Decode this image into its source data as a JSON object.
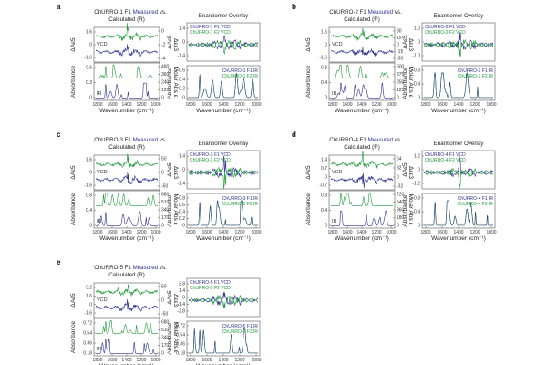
{
  "colors": {
    "measured": "#2e3192",
    "calculated": "#1f9a3a",
    "f1": "#2e3192",
    "f2": "#1f9a3a",
    "axis": "#555555"
  },
  "chart_data": [
    {
      "type": "line",
      "letter": "a",
      "left": {
        "title_prefix": "ChURRO-1 F1",
        "title_measured": "Measured",
        "title_suffix": "vs.",
        "title_calculated": "Calculated (R)",
        "vcd_label": "VCD",
        "ir_label": "IR",
        "ylabel_vcd_left": "ΔAε5",
        "ylabel_vcd_right": "Δεε3",
        "ylabel_ir_left": "Absorbance",
        "ylabel_ir_right": "Molar Abs ε",
        "vcd_left_ticks": [
          "1.6",
          "0",
          "-1.6"
        ],
        "vcd_right_ticks": [
          "0",
          "-2",
          "-4"
        ],
        "ir_left_ticks": [
          "0.6",
          "0.3",
          "0"
        ],
        "ir_right_ticks": [
          "480",
          "360",
          "240",
          "120",
          "0"
        ],
        "xlabel": "Wavenumber (cm⁻¹)",
        "xticks": [
          "1800",
          "1600",
          "1400",
          "1200",
          "1000"
        ],
        "xlim": [
          1850,
          950
        ]
      },
      "right": {
        "title": "Enantiomer Overlay",
        "ylabel_vcd": "ΔAε5",
        "ylabel_ir": "Absorbance",
        "vcd_ticks": [
          "1.4",
          "0",
          "-1.4"
        ],
        "ir_ticks": [
          "0.6",
          "0.4",
          "0.2",
          "0"
        ],
        "legend_vcd": [
          "ChURRO-1 F1 VCD",
          "ChURRO-1 F2 VCD"
        ],
        "legend_ir": [
          "ChURRO-1 F1 IR",
          "ChURRO-1 F2 IR"
        ],
        "xlabel": "Wavenumber (cm⁻¹)",
        "xticks": [
          "1800",
          "1600",
          "1400",
          "1200",
          "1000"
        ],
        "xlim": [
          1850,
          950
        ]
      }
    },
    {
      "type": "line",
      "letter": "b",
      "left": {
        "title_prefix": "ChURRO-2 F1",
        "title_measured": "Measured",
        "title_suffix": "vs.",
        "title_calculated": "Calculated (R)",
        "vcd_label": "VCD",
        "ir_label": "IR",
        "ylabel_vcd_left": "ΔAε5",
        "ylabel_vcd_right": "Δεε3",
        "ylabel_ir_left": "Absorbance",
        "ylabel_ir_right": "Molar Abs ε",
        "vcd_left_ticks": [
          "1.6",
          "0",
          "-1.6"
        ],
        "vcd_right_ticks": [
          "30",
          "15",
          "0",
          "-15",
          "-30"
        ],
        "ir_left_ticks": [
          "0.8",
          "0.4",
          "0"
        ],
        "ir_right_ticks": [
          "500",
          "375",
          "250",
          "125",
          "0"
        ],
        "xlabel": "Wavenumber (cm⁻¹)",
        "xticks": [
          "1800",
          "1600",
          "1400",
          "1200",
          "1000"
        ],
        "xlim": [
          1850,
          950
        ]
      },
      "right": {
        "title": "Enantiomer Overlay",
        "ylabel_vcd": "ΔAε5",
        "ylabel_ir": "Absorbance",
        "vcd_ticks": [
          "1.0",
          "0",
          "-1.0"
        ],
        "ir_ticks": [
          "0.8",
          "0.4",
          "0"
        ],
        "legend_vcd": [
          "ChURRO-2 F1 VCD",
          "ChURRO-2 F2 VCD"
        ],
        "legend_ir": [
          "ChURRO-2 F1 IR",
          "ChURRO-2 F2 IR"
        ],
        "xlabel": "Wavenumber (cm⁻¹)",
        "xticks": [
          "1800",
          "1600",
          "1400",
          "1200",
          "1000"
        ],
        "xlim": [
          1850,
          950
        ]
      }
    },
    {
      "type": "line",
      "letter": "c",
      "left": {
        "title_prefix": "ChURRO-3 F1",
        "title_measured": "Measured",
        "title_suffix": "vs.",
        "title_calculated": "Calculated (R)",
        "vcd_label": "VCD",
        "ir_label": "IR",
        "ylabel_vcd_left": "ΔAε5",
        "ylabel_vcd_right": "Δεε3",
        "ylabel_ir_left": "Absorbance",
        "ylabel_ir_right": "Molar Abs ε",
        "vcd_left_ticks": [
          "1.6",
          "0",
          "-1.6"
        ],
        "vcd_right_ticks": [
          "50",
          "0",
          "-50"
        ],
        "ir_left_ticks": [
          "0.8",
          "0.4",
          "0"
        ],
        "ir_right_ticks": [
          "680",
          "510",
          "340",
          "170",
          "0"
        ],
        "xlabel": "Wavenumber (cm⁻¹)",
        "xticks": [
          "1800",
          "1600",
          "1400",
          "1200",
          "1000"
        ],
        "xlim": [
          1850,
          950
        ]
      },
      "right": {
        "title": "Enantiomer Overlay",
        "ylabel_vcd": "ΔAε5",
        "ylabel_ir": "Absorbance",
        "vcd_ticks": [
          "1.4",
          "0",
          "-1.4"
        ],
        "ir_ticks": [
          "0.8",
          "0.6",
          "0.4",
          "0.2",
          "0"
        ],
        "legend_vcd": [
          "ChURRO-3 F1 VCD",
          "ChURRO-3 F2 VCD"
        ],
        "legend_ir": [
          "ChURRO-3 F1 IR",
          "ChURRO-3 F2 IR"
        ],
        "xlabel": "Wavenumber (cm⁻¹)",
        "xticks": [
          "1800",
          "1600",
          "1400",
          "1200",
          "1000"
        ],
        "xlim": [
          1850,
          950
        ]
      }
    },
    {
      "type": "line",
      "letter": "d",
      "left": {
        "title_prefix": "ChURRO-4 F1",
        "title_measured": "Measured",
        "title_suffix": "vs.",
        "title_calculated": "Calculated (R)",
        "vcd_label": "VCD",
        "ir_label": "IR",
        "ylabel_vcd_left": "ΔAε5",
        "ylabel_vcd_right": "Δεε3",
        "ylabel_ir_left": "Absorbance",
        "ylabel_ir_right": "Molar Abs ε",
        "vcd_left_ticks": [
          "1.4",
          "0.7",
          "0",
          "-0.7"
        ],
        "vcd_right_ticks": [
          "64",
          "32",
          "0",
          "-32"
        ],
        "ir_left_ticks": [
          "0.8",
          "0.4",
          "0"
        ],
        "ir_right_ticks": [
          "720",
          "540",
          "360",
          "180",
          "0"
        ],
        "xlabel": "Wavenumber (cm⁻¹)",
        "xticks": [
          "1800",
          "1600",
          "1400",
          "1200",
          "1000"
        ],
        "xlim": [
          1850,
          950
        ]
      },
      "right": {
        "title": "Enantiomer Overlay",
        "ylabel_vcd": "ΔAε5",
        "ylabel_ir": "Absorbance",
        "vcd_ticks": [
          "1.2",
          "0",
          "-1.2"
        ],
        "ir_ticks": [
          "0.8",
          "0.4",
          "0"
        ],
        "legend_vcd": [
          "ChURRO-4 F1 VCD",
          "ChURRO-4 F2 VCD"
        ],
        "legend_ir": [
          "ChURRO-4 F1 IR",
          "ChURRO-4 F2 IR"
        ],
        "xlabel": "Wavenumber (cm⁻¹)",
        "xticks": [
          "1800",
          "1600",
          "1400",
          "1200",
          "1000"
        ],
        "xlim": [
          1850,
          950
        ]
      }
    },
    {
      "type": "line",
      "letter": "e",
      "left": {
        "title_prefix": "ChURRO-5 F1",
        "title_measured": "Measured",
        "title_suffix": "vs.",
        "title_calculated": "Calculated (R)",
        "vcd_label": "VCD",
        "ir_label": "IR",
        "ylabel_vcd_left": "ΔAε5",
        "ylabel_vcd_right": "Δεε3",
        "ylabel_ir_left": "Absorbance",
        "ylabel_ir_right": "Molar Abs ε",
        "vcd_left_ticks": [
          "3.2",
          "1.6",
          "0",
          "-1.6"
        ],
        "vcd_right_ticks": [
          "50",
          "0",
          "-50"
        ],
        "ir_left_ticks": [
          "0.72",
          "0.54",
          "0.36",
          "0.18"
        ],
        "ir_right_ticks": [
          "680",
          "510",
          "340",
          "170",
          "0"
        ],
        "xlabel": "Wavenumber (cm⁻¹)",
        "xticks": [
          "1800",
          "1600",
          "1400",
          "1200",
          "1000"
        ],
        "xlim": [
          1850,
          950
        ]
      },
      "right": {
        "title": "",
        "ylabel_vcd": "ΔAε5",
        "ylabel_ir": "Absorbance",
        "vcd_ticks": [
          "2.8",
          "1.4",
          "0",
          "-1.4",
          "-2.8"
        ],
        "ir_ticks": [
          "0.72",
          "0.54",
          "0.36",
          "0.18"
        ],
        "legend_vcd": [
          "ChURRO-5 F1 VCD",
          "ChURRO-5 F2 VCD"
        ],
        "legend_ir": [
          "ChURRO-5 F1 IR",
          "ChURRO-5 F2 IR"
        ],
        "xlabel": "Wavenumber (cm⁻¹)",
        "xticks": [
          "1800",
          "1600",
          "1400",
          "1200",
          "1000"
        ],
        "xlim": [
          1850,
          950
        ]
      }
    }
  ]
}
